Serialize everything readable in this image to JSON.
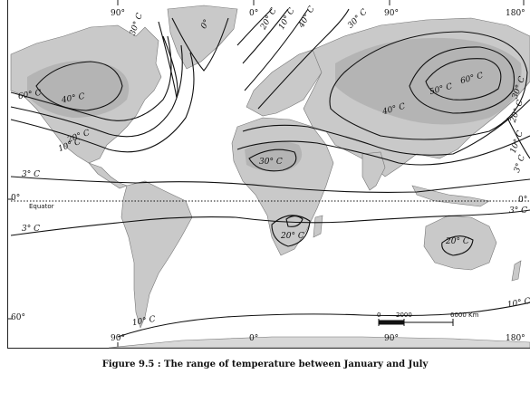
{
  "map": {
    "longitude_labels_top": [
      "90°",
      "0°",
      "90°",
      "180°"
    ],
    "longitude_labels_bottom": [
      "90°",
      "0°",
      "90°",
      "180°"
    ],
    "latitude_labels": [
      "0°",
      "60°"
    ],
    "right_latitude_label": "0°",
    "equator_label": "Equator",
    "isotherm_labels": {
      "na_60": "60° C",
      "na_40": "40° C",
      "na_20": "20° C",
      "na_10": "10° C",
      "greenland_30": "30° C",
      "atl_0": "0°",
      "atl_20": "20° C",
      "atl_10": "10° C",
      "atl_40": "40° C",
      "asia_30": "30° C",
      "asia_60": "60° C",
      "asia_50": "50° C",
      "asia_40": "40° C",
      "east_30": "30° C",
      "east_20": "20° C",
      "east_10": "10° C",
      "east_3n": "3° C",
      "east_3s": "3° C",
      "west_3n": "3° C",
      "west_3s": "3° C",
      "sahara_30": "30° C",
      "africa_20": "20° C",
      "aus_20": "20° C",
      "south_10": "10° C",
      "se_10": "10° C"
    },
    "scale_bar": {
      "labels": [
        "0",
        "2000",
        "6000 Km"
      ]
    }
  },
  "caption": "Figure 9.5 : The range of temperature between January and July",
  "colors": {
    "land": "#c9c9c9",
    "land_dark": "#a9a9a9",
    "water": "#ffffff",
    "line": "#111111"
  }
}
